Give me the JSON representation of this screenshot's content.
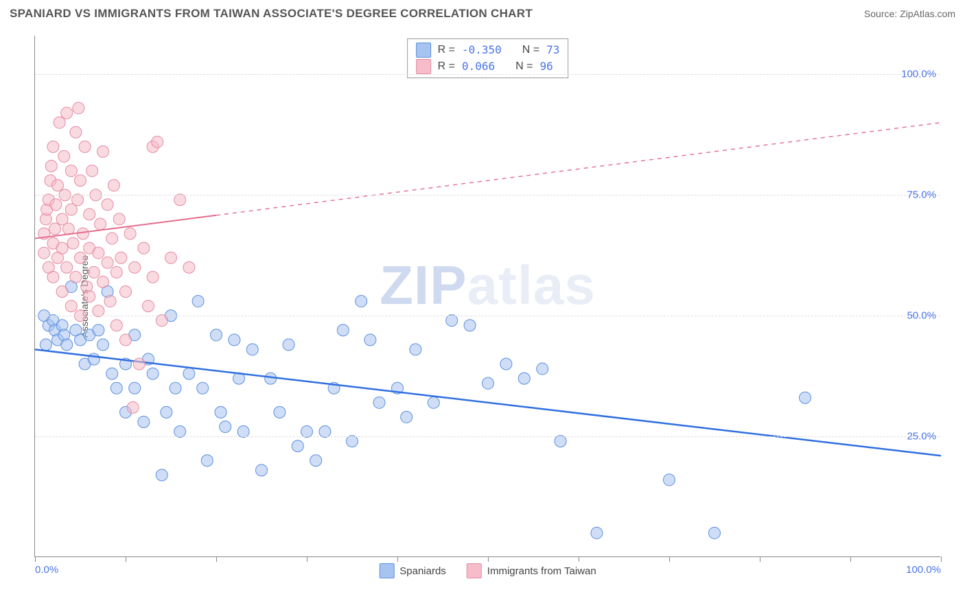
{
  "header": {
    "title": "SPANIARD VS IMMIGRANTS FROM TAIWAN ASSOCIATE'S DEGREE CORRELATION CHART",
    "source": "Source: ZipAtlas.com"
  },
  "chart": {
    "type": "scatter",
    "ylabel": "Associate's Degree",
    "watermark": {
      "part1": "ZIP",
      "part2": "atlas"
    },
    "background_color": "#ffffff",
    "grid_color": "#dddddd",
    "axis_color": "#888888",
    "label_color": "#4a74e8",
    "xlim": [
      0,
      100
    ],
    "ylim": [
      0,
      108
    ],
    "ytick_values": [
      25,
      50,
      75,
      100
    ],
    "ytick_labels": [
      "25.0%",
      "50.0%",
      "75.0%",
      "100.0%"
    ],
    "xtick_values": [
      0,
      10,
      20,
      30,
      40,
      50,
      60,
      70,
      80,
      90,
      100
    ],
    "xtick_labels_shown": {
      "0": "0.0%",
      "100": "100.0%"
    },
    "marker_radius": 8.5,
    "marker_opacity": 0.55,
    "series": [
      {
        "name": "Spaniards",
        "color_fill": "#a7c3ef",
        "color_stroke": "#5b8fe0",
        "R": "-0.350",
        "N": "73",
        "trend": {
          "x1": 0,
          "y1": 43,
          "x2": 100,
          "y2": 21,
          "solid_until_x": 100,
          "stroke": "#2f6fe0",
          "width": 2.5
        },
        "points": [
          [
            1,
            50
          ],
          [
            1.5,
            48
          ],
          [
            2,
            49
          ],
          [
            2.2,
            47
          ],
          [
            2.5,
            45
          ],
          [
            1.2,
            44
          ],
          [
            3,
            48
          ],
          [
            3.2,
            46
          ],
          [
            3.5,
            44
          ],
          [
            4,
            56
          ],
          [
            4.5,
            47
          ],
          [
            5,
            45
          ],
          [
            5.5,
            40
          ],
          [
            6,
            46
          ],
          [
            6.5,
            41
          ],
          [
            7,
            47
          ],
          [
            7.5,
            44
          ],
          [
            8,
            55
          ],
          [
            8.5,
            38
          ],
          [
            9,
            35
          ],
          [
            10,
            40
          ],
          [
            10,
            30
          ],
          [
            11,
            46
          ],
          [
            11,
            35
          ],
          [
            12,
            28
          ],
          [
            12.5,
            41
          ],
          [
            13,
            38
          ],
          [
            14,
            17
          ],
          [
            14.5,
            30
          ],
          [
            15,
            50
          ],
          [
            15.5,
            35
          ],
          [
            16,
            26
          ],
          [
            17,
            38
          ],
          [
            18,
            53
          ],
          [
            18.5,
            35
          ],
          [
            19,
            20
          ],
          [
            20,
            46
          ],
          [
            20.5,
            30
          ],
          [
            21,
            27
          ],
          [
            22,
            45
          ],
          [
            22.5,
            37
          ],
          [
            23,
            26
          ],
          [
            24,
            43
          ],
          [
            25,
            18
          ],
          [
            26,
            37
          ],
          [
            27,
            30
          ],
          [
            28,
            44
          ],
          [
            29,
            23
          ],
          [
            30,
            26
          ],
          [
            31,
            20
          ],
          [
            32,
            26
          ],
          [
            33,
            35
          ],
          [
            34,
            47
          ],
          [
            35,
            24
          ],
          [
            36,
            53
          ],
          [
            37,
            45
          ],
          [
            38,
            32
          ],
          [
            40,
            35
          ],
          [
            41,
            29
          ],
          [
            42,
            43
          ],
          [
            44,
            32
          ],
          [
            46,
            49
          ],
          [
            48,
            48
          ],
          [
            50,
            36
          ],
          [
            52,
            40
          ],
          [
            54,
            37
          ],
          [
            56,
            39
          ],
          [
            58,
            24
          ],
          [
            62,
            5
          ],
          [
            70,
            16
          ],
          [
            75,
            5
          ],
          [
            85,
            33
          ]
        ]
      },
      {
        "name": "Immigrants from Taiwan",
        "color_fill": "#f6bcc9",
        "color_stroke": "#e48aa3",
        "R": "0.066",
        "N": "96",
        "trend": {
          "x1": 0,
          "y1": 66,
          "x2": 100,
          "y2": 90,
          "solid_until_x": 20,
          "stroke": "#e46a8c",
          "width": 2
        },
        "points": [
          [
            1,
            63
          ],
          [
            1,
            67
          ],
          [
            1.2,
            70
          ],
          [
            1.3,
            72
          ],
          [
            1.5,
            74
          ],
          [
            1.5,
            60
          ],
          [
            1.7,
            78
          ],
          [
            1.8,
            81
          ],
          [
            2,
            58
          ],
          [
            2,
            65
          ],
          [
            2,
            85
          ],
          [
            2.2,
            68
          ],
          [
            2.3,
            73
          ],
          [
            2.5,
            62
          ],
          [
            2.5,
            77
          ],
          [
            2.7,
            90
          ],
          [
            3,
            55
          ],
          [
            3,
            64
          ],
          [
            3,
            70
          ],
          [
            3.2,
            83
          ],
          [
            3.3,
            75
          ],
          [
            3.5,
            60
          ],
          [
            3.5,
            92
          ],
          [
            3.7,
            68
          ],
          [
            4,
            52
          ],
          [
            4,
            72
          ],
          [
            4,
            80
          ],
          [
            4.2,
            65
          ],
          [
            4.5,
            58
          ],
          [
            4.5,
            88
          ],
          [
            4.7,
            74
          ],
          [
            4.8,
            93
          ],
          [
            5,
            50
          ],
          [
            5,
            62
          ],
          [
            5,
            78
          ],
          [
            5.3,
            67
          ],
          [
            5.5,
            85
          ],
          [
            5.7,
            56
          ],
          [
            6,
            54
          ],
          [
            6,
            71
          ],
          [
            6,
            64
          ],
          [
            6.3,
            80
          ],
          [
            6.5,
            59
          ],
          [
            6.7,
            75
          ],
          [
            7,
            51
          ],
          [
            7,
            63
          ],
          [
            7.2,
            69
          ],
          [
            7.5,
            57
          ],
          [
            7.5,
            84
          ],
          [
            8,
            61
          ],
          [
            8,
            73
          ],
          [
            8.3,
            53
          ],
          [
            8.5,
            66
          ],
          [
            8.7,
            77
          ],
          [
            9,
            59
          ],
          [
            9,
            48
          ],
          [
            9.3,
            70
          ],
          [
            9.5,
            62
          ],
          [
            10,
            55
          ],
          [
            10,
            45
          ],
          [
            10.5,
            67
          ],
          [
            10.8,
            31
          ],
          [
            11,
            60
          ],
          [
            11.5,
            40
          ],
          [
            12,
            64
          ],
          [
            12.5,
            52
          ],
          [
            13,
            58
          ],
          [
            13,
            85
          ],
          [
            13.5,
            86
          ],
          [
            14,
            49
          ],
          [
            15,
            62
          ],
          [
            16,
            74
          ],
          [
            17,
            60
          ]
        ]
      }
    ],
    "corr_legend": {
      "rows": [
        {
          "swatch_fill": "#a7c3ef",
          "swatch_stroke": "#5b8fe0",
          "R_label": "R =",
          "R_val": "-0.350",
          "N_label": "N =",
          "N_val": "73"
        },
        {
          "swatch_fill": "#f6bcc9",
          "swatch_stroke": "#e48aa3",
          "R_label": "R =",
          "R_val": " 0.066",
          "N_label": "N =",
          "N_val": "96"
        }
      ]
    },
    "bottom_legend": [
      {
        "swatch_fill": "#a7c3ef",
        "swatch_stroke": "#5b8fe0",
        "label": "Spaniards"
      },
      {
        "swatch_fill": "#f6bcc9",
        "swatch_stroke": "#e48aa3",
        "label": "Immigrants from Taiwan"
      }
    ]
  }
}
